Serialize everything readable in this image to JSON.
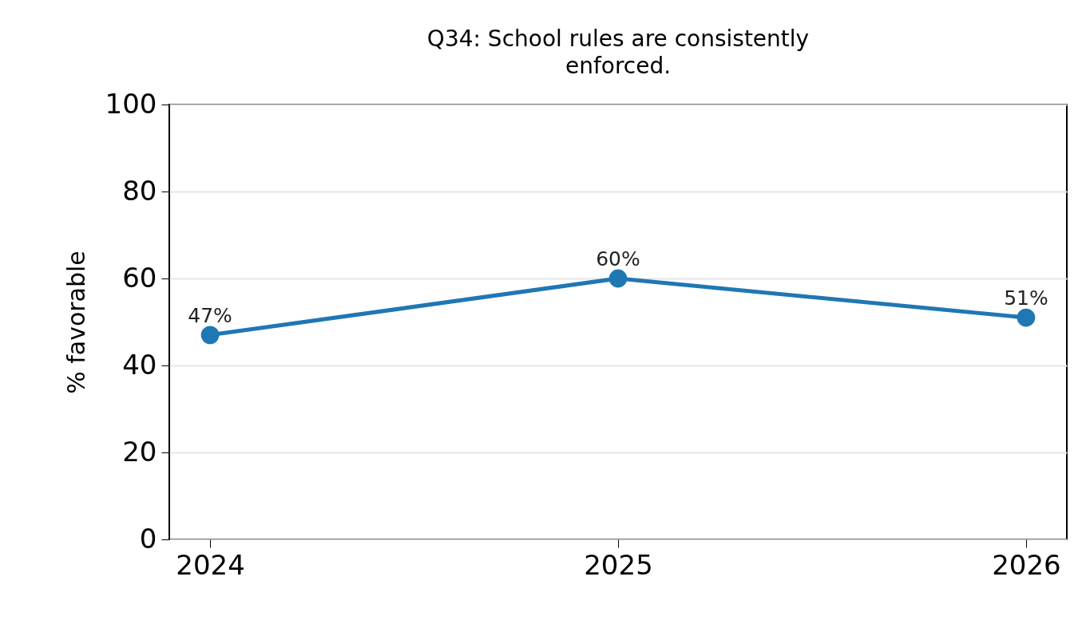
{
  "chart_data": {
    "type": "line",
    "title": "Q34: School rules are consistently enforced.",
    "ylabel": "% favorable",
    "categories": [
      "2024",
      "2025",
      "2026"
    ],
    "values": [
      47,
      60,
      51
    ],
    "color": "#1f77b4",
    "value_labels": [
      "47%",
      "60%",
      "51%"
    ],
    "ylim": [
      0,
      100
    ],
    "yticks": [
      0,
      20,
      40,
      60,
      80,
      100
    ],
    "grid": "y",
    "marker": "circle",
    "line_style": "solid"
  }
}
